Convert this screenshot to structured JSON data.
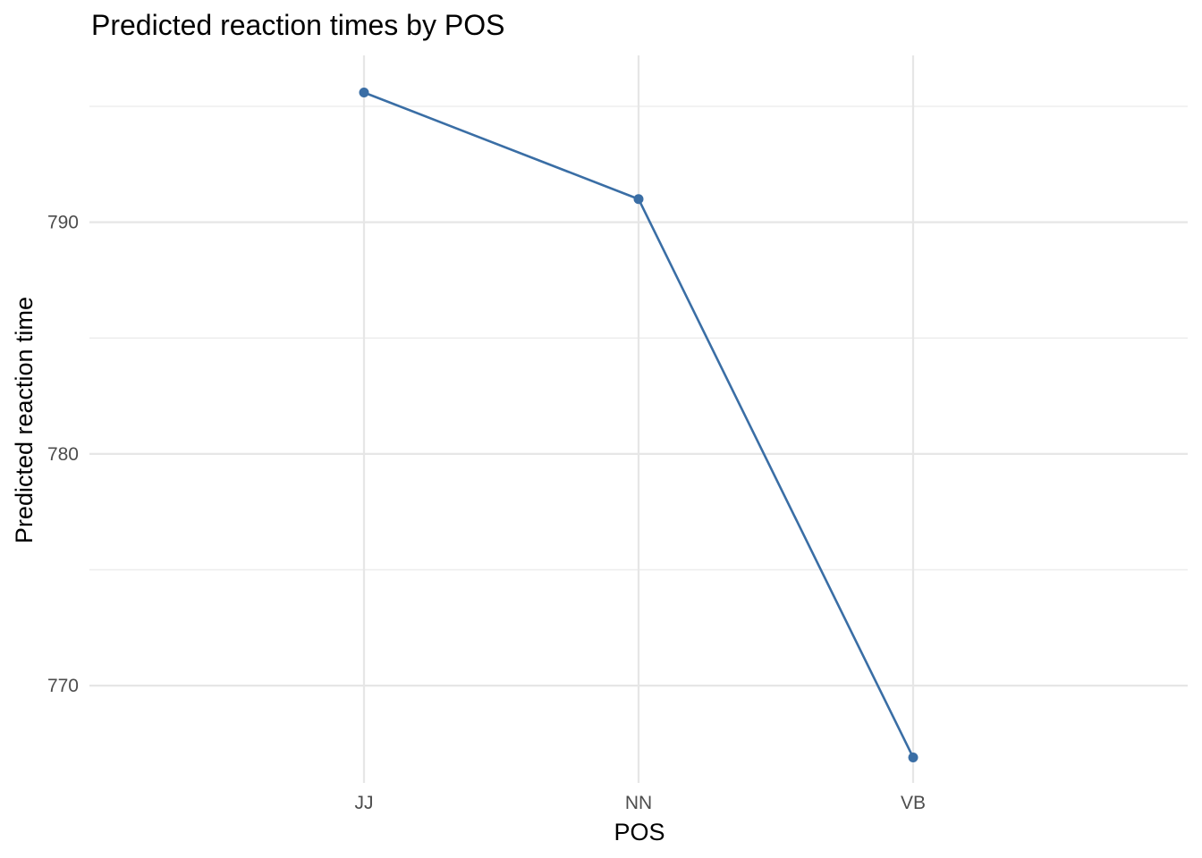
{
  "chart_data": {
    "type": "line",
    "title": "Predicted reaction times by POS",
    "xlabel": "POS",
    "ylabel": "Predicted reaction time",
    "categories": [
      "JJ",
      "NN",
      "VB"
    ],
    "series": [
      {
        "values": [
          795.6,
          791.0,
          766.9
        ]
      }
    ],
    "ylim": [
      765.8,
      797.2
    ],
    "y_major_ticks": [
      770,
      780,
      790
    ],
    "y_minor_ticks": [
      775,
      785,
      795
    ],
    "y_tick_labels": [
      "770",
      "780",
      "790"
    ],
    "grid": true,
    "legend": "none",
    "line_color": "#3a6ea5",
    "point_color": "#3a6ea5"
  }
}
